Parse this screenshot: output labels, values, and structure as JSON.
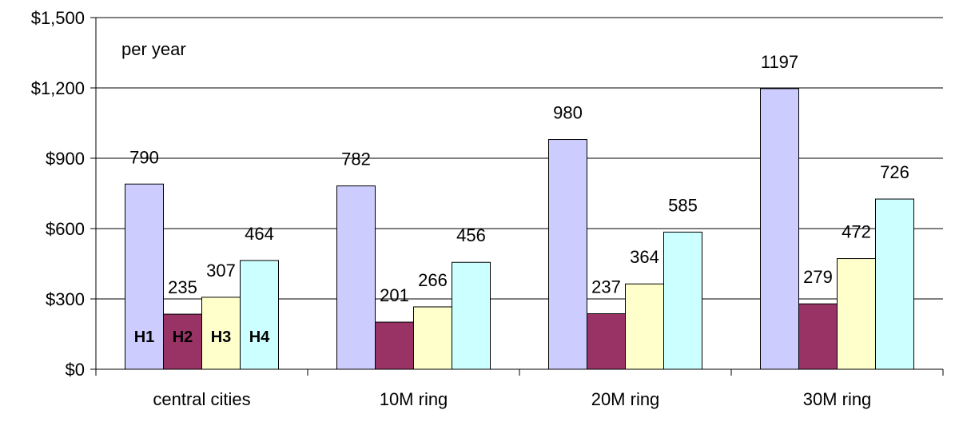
{
  "chart_data": {
    "type": "bar",
    "title": "",
    "xlabel": "",
    "ylabel": "",
    "annotation": "per year",
    "categories": [
      "central cities",
      "10M ring",
      "20M ring",
      "30M ring"
    ],
    "series": [
      {
        "name": "H1",
        "values": [
          790,
          782,
          980,
          1197
        ],
        "color": "#ccccff"
      },
      {
        "name": "H2",
        "values": [
          235,
          201,
          237,
          279
        ],
        "color": "#993366"
      },
      {
        "name": "H3",
        "values": [
          307,
          266,
          364,
          472
        ],
        "color": "#ffffcc"
      },
      {
        "name": "H4",
        "values": [
          464,
          456,
          585,
          726
        ],
        "color": "#ccffff"
      }
    ],
    "ylim": [
      0,
      1500
    ],
    "yticks": [
      0,
      300,
      600,
      900,
      1200,
      1500
    ],
    "ytick_labels": [
      "$0",
      "$300",
      "$600",
      "$900",
      "$1,200",
      "$1,500"
    ],
    "grid": true,
    "data_labels": true,
    "series_labels_in_first_group": true
  }
}
